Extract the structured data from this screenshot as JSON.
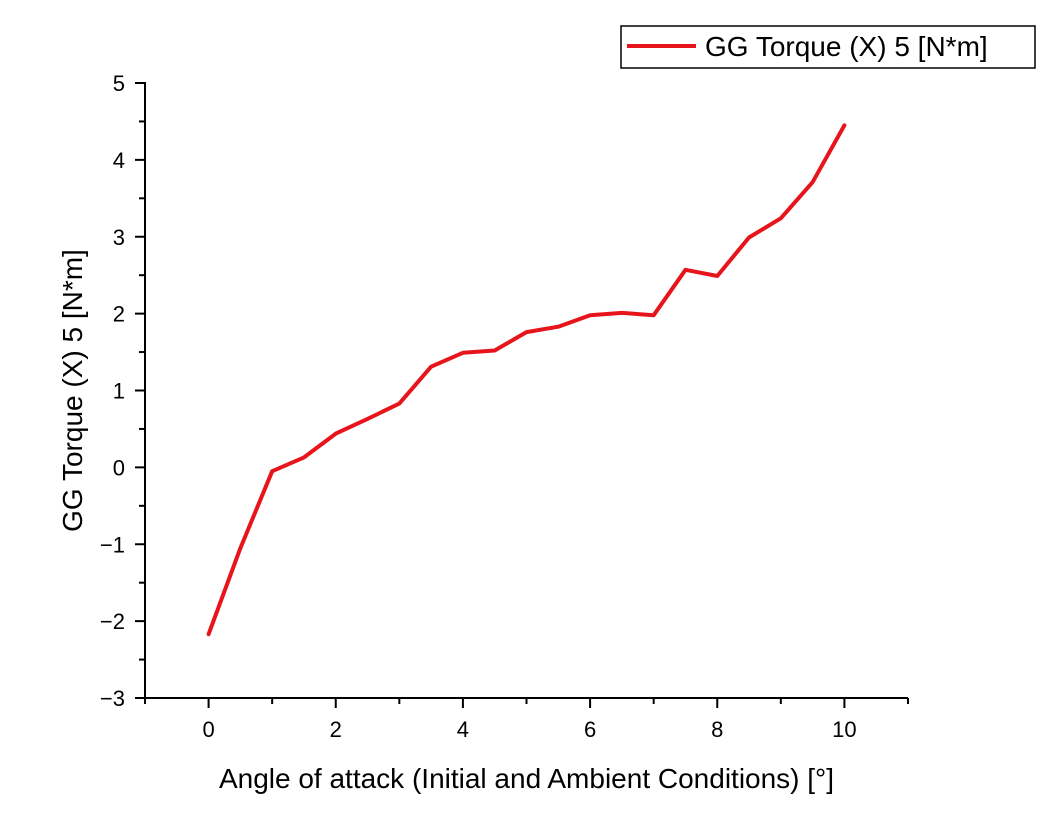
{
  "chart_data": {
    "type": "line",
    "title": "",
    "xlabel": "Angle of attack (Initial and Ambient Conditions) [°]",
    "ylabel": "GG Torque (X) 5 [N*m]",
    "xlim": [
      -1,
      11
    ],
    "ylim": [
      -3,
      5
    ],
    "xticks": [
      0,
      2,
      4,
      6,
      8,
      10
    ],
    "xtick_labels": [
      "0",
      "2",
      "4",
      "6",
      "8",
      "10"
    ],
    "yticks": [
      -3,
      -2,
      -1,
      0,
      1,
      2,
      3,
      4,
      5
    ],
    "ytick_labels": [
      "−3",
      "−2",
      "−1",
      "0",
      "1",
      "2",
      "3",
      "4",
      "5"
    ],
    "grid": false,
    "legend_position": "top-right",
    "series": [
      {
        "name": "GG Torque (X) 5 [N*m]",
        "color": "#e8141c",
        "x": [
          0,
          0.5,
          1,
          1.5,
          2,
          2.5,
          3,
          3.5,
          4,
          4.5,
          5,
          5.5,
          6,
          6.5,
          7,
          7.5,
          8,
          8.5,
          9,
          9.5,
          10
        ],
        "y": [
          -2.17,
          -1.05,
          -0.05,
          0.13,
          0.44,
          0.63,
          0.83,
          1.31,
          1.49,
          1.52,
          1.76,
          1.83,
          1.98,
          2.01,
          1.98,
          2.57,
          2.49,
          2.99,
          3.24,
          3.71,
          4.45
        ]
      }
    ]
  }
}
